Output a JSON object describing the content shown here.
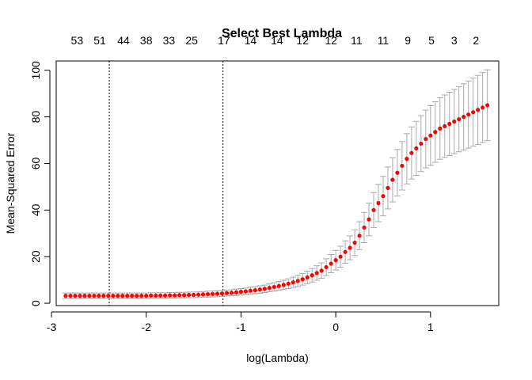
{
  "chart_data": {
    "type": "scatter",
    "title": "Select Best Lambda",
    "xlabel": "log(Lambda)",
    "ylabel": "Mean-Squared Error",
    "xlim": [
      -2.95,
      1.72
    ],
    "ylim": [
      -1,
      104
    ],
    "x_ticks": [
      -3,
      -2,
      -1,
      0,
      1
    ],
    "y_ticks": [
      0,
      20,
      40,
      60,
      80,
      100
    ],
    "top_axis": {
      "labels": [
        "53",
        "51",
        "44",
        "38",
        "33",
        "25",
        "17",
        "14",
        "14",
        "12",
        "12",
        "11",
        "11",
        "9",
        "5",
        "3",
        "2"
      ],
      "x": [
        -2.73,
        -2.49,
        -2.24,
        -2.0,
        -1.76,
        -1.52,
        -1.18,
        -0.9,
        -0.62,
        -0.35,
        -0.05,
        0.22,
        0.5,
        0.76,
        1.01,
        1.25,
        1.48
      ]
    },
    "vertical_lines": [
      -2.39,
      -1.19
    ],
    "series": [
      {
        "point_color": "#ff0000",
        "error_bar_color": "#a9a9a9",
        "log_lambda": [
          -2.85,
          -2.8,
          -2.75,
          -2.7,
          -2.65,
          -2.6,
          -2.55,
          -2.5,
          -2.45,
          -2.4,
          -2.35,
          -2.3,
          -2.25,
          -2.2,
          -2.15,
          -2.1,
          -2.05,
          -2.0,
          -1.95,
          -1.9,
          -1.85,
          -1.8,
          -1.75,
          -1.7,
          -1.65,
          -1.6,
          -1.55,
          -1.5,
          -1.45,
          -1.4,
          -1.35,
          -1.3,
          -1.25,
          -1.2,
          -1.15,
          -1.1,
          -1.05,
          -1.0,
          -0.95,
          -0.9,
          -0.85,
          -0.8,
          -0.75,
          -0.7,
          -0.65,
          -0.6,
          -0.55,
          -0.5,
          -0.45,
          -0.4,
          -0.35,
          -0.3,
          -0.25,
          -0.2,
          -0.15,
          -0.1,
          -0.05,
          0.0,
          0.05,
          0.1,
          0.15,
          0.2,
          0.25,
          0.3,
          0.35,
          0.4,
          0.45,
          0.5,
          0.55,
          0.6,
          0.65,
          0.7,
          0.75,
          0.8,
          0.85,
          0.9,
          0.95,
          1.0,
          1.05,
          1.1,
          1.15,
          1.2,
          1.25,
          1.3,
          1.35,
          1.4,
          1.45,
          1.5,
          1.55,
          1.6
        ],
        "mse": [
          3.2,
          3.2,
          3.2,
          3.2,
          3.2,
          3.2,
          3.2,
          3.2,
          3.2,
          3.2,
          3.2,
          3.2,
          3.2,
          3.2,
          3.2,
          3.2,
          3.2,
          3.2,
          3.3,
          3.3,
          3.3,
          3.3,
          3.4,
          3.4,
          3.5,
          3.5,
          3.6,
          3.6,
          3.7,
          3.8,
          3.9,
          4.0,
          4.1,
          4.2,
          4.4,
          4.5,
          4.7,
          4.9,
          5.1,
          5.4,
          5.6,
          5.9,
          6.2,
          6.6,
          7.0,
          7.4,
          7.9,
          8.4,
          9.0,
          9.6,
          10.3,
          11.1,
          12.0,
          13.0,
          14.0,
          15.5,
          17.0,
          18.5,
          20.0,
          22.0,
          23.8,
          26.0,
          29.0,
          32.5,
          36.0,
          40.0,
          43.0,
          46.0,
          49.5,
          53.0,
          56.0,
          59.0,
          62.0,
          64.5,
          66.5,
          68.5,
          70.5,
          72.0,
          73.5,
          75.0,
          76.0,
          77.0,
          78.0,
          79.0,
          80.0,
          81.0,
          82.0,
          83.0,
          84.0,
          85.0
        ],
        "se": [
          1.2,
          1.2,
          1.2,
          1.2,
          1.2,
          1.2,
          1.2,
          1.2,
          1.2,
          1.2,
          1.2,
          1.2,
          1.2,
          1.2,
          1.2,
          1.2,
          1.2,
          1.2,
          1.2,
          1.2,
          1.2,
          1.2,
          1.2,
          1.2,
          1.2,
          1.2,
          1.2,
          1.2,
          1.2,
          1.2,
          1.3,
          1.3,
          1.3,
          1.3,
          1.3,
          1.3,
          1.4,
          1.4,
          1.4,
          1.5,
          1.5,
          1.6,
          1.6,
          1.7,
          1.8,
          1.9,
          2.0,
          2.1,
          2.2,
          2.4,
          2.5,
          2.7,
          2.9,
          3.1,
          3.3,
          3.6,
          3.9,
          4.2,
          4.5,
          4.8,
          5.1,
          5.5,
          6.0,
          6.5,
          7.0,
          7.5,
          8.0,
          8.5,
          9.0,
          9.5,
          10.0,
          10.4,
          10.8,
          11.2,
          11.6,
          12.0,
          12.4,
          12.8,
          13.0,
          13.2,
          13.4,
          13.6,
          13.8,
          14.0,
          14.2,
          14.4,
          14.6,
          14.8,
          15.0,
          15.2
        ]
      }
    ],
    "grid": false,
    "legend": "none"
  }
}
